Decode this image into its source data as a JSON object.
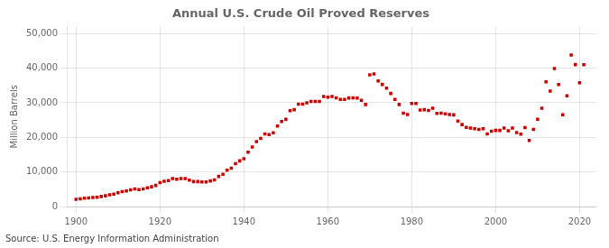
{
  "chart_data": {
    "type": "scatter",
    "title": "Annual U.S. Crude Oil Proved Reserves",
    "ylabel": "Million Barrels",
    "annotation": "Source: U.S. Energy Information Administration",
    "color": "#CC0000",
    "marker": "square",
    "grid": true,
    "xlim": [
      1898,
      2024
    ],
    "ylim": [
      0,
      52000
    ],
    "xticks": [
      1900,
      1920,
      1940,
      1960,
      1980,
      2000,
      2020
    ],
    "yticks": [
      0,
      {
        "value": 10000,
        "label": "10,000"
      },
      {
        "value": 20000,
        "label": "20,000"
      },
      {
        "value": 30000,
        "label": "30,000"
      },
      {
        "value": 40000,
        "label": "40,000"
      },
      {
        "value": 50000,
        "label": "50,000"
      }
    ],
    "x": [
      1900,
      1901,
      1902,
      1903,
      1904,
      1905,
      1906,
      1907,
      1908,
      1909,
      1910,
      1911,
      1912,
      1913,
      1914,
      1915,
      1916,
      1917,
      1918,
      1919,
      1920,
      1921,
      1922,
      1923,
      1924,
      1925,
      1926,
      1927,
      1928,
      1929,
      1930,
      1931,
      1932,
      1933,
      1934,
      1935,
      1936,
      1937,
      1938,
      1939,
      1940,
      1941,
      1942,
      1943,
      1944,
      1945,
      1946,
      1947,
      1948,
      1949,
      1950,
      1951,
      1952,
      1953,
      1954,
      1955,
      1956,
      1957,
      1958,
      1959,
      1960,
      1961,
      1962,
      1963,
      1964,
      1965,
      1966,
      1967,
      1968,
      1969,
      1970,
      1971,
      1972,
      1973,
      1974,
      1975,
      1976,
      1977,
      1978,
      1979,
      1980,
      1981,
      1982,
      1983,
      1984,
      1985,
      1986,
      1987,
      1988,
      1989,
      1990,
      1991,
      1992,
      1993,
      1994,
      1995,
      1996,
      1997,
      1998,
      1999,
      2000,
      2001,
      2002,
      2003,
      2004,
      2005,
      2006,
      2007,
      2008,
      2009,
      2010,
      2011,
      2012,
      2013,
      2014,
      2015,
      2016,
      2017,
      2018,
      2019,
      2020,
      2021
    ],
    "values": [
      2100,
      2200,
      2400,
      2500,
      2600,
      2700,
      2900,
      3100,
      3400,
      3600,
      4000,
      4300,
      4500,
      4800,
      5100,
      4900,
      5100,
      5400,
      5700,
      6100,
      6900,
      7300,
      7500,
      8100,
      7900,
      8100,
      8100,
      7600,
      7200,
      7200,
      7100,
      7100,
      7400,
      7700,
      8700,
      9300,
      10500,
      11100,
      12400,
      13200,
      13800,
      15700,
      17200,
      18800,
      19700,
      21000,
      20800,
      21300,
      23300,
      24600,
      25200,
      27700,
      28000,
      29600,
      29600,
      30000,
      30400,
      30400,
      30400,
      31800,
      31600,
      31800,
      31400,
      30970,
      30990,
      31390,
      31450,
      31380,
      30710,
      29500,
      38070,
      38350,
      36340,
      35300,
      34250,
      32700,
      30940,
      29500,
      27000,
      26600,
      29800,
      29800,
      27900,
      28000,
      27800,
      28400,
      26900,
      27000,
      26800,
      26600,
      26500,
      24700,
      23700,
      22900,
      22700,
      22500,
      22300,
      22500,
      21000,
      21800,
      22000,
      22000,
      22700,
      21900,
      22700,
      21400,
      20900,
      22800,
      19120,
      22300,
      25244,
      28452,
      36052,
      33377,
      39902,
      35258,
      26541,
      32000,
      43817,
      41040,
      35800,
      41000
    ]
  }
}
